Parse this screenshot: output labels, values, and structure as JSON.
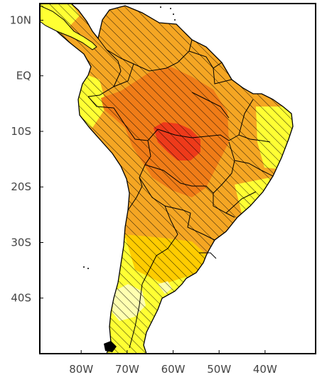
{
  "map": {
    "lat_labels": [
      "10N",
      "EQ",
      "10S",
      "20S",
      "30S",
      "40S"
    ],
    "lon_labels": [
      "80W",
      "70W",
      "60W",
      "50W",
      "40W"
    ],
    "lat_values": [
      10,
      0,
      -10,
      -20,
      -30,
      -40
    ],
    "lon_values": [
      -80,
      -70,
      -60,
      -50,
      -40
    ],
    "extent": {
      "lon_min": -89,
      "lon_max": -29,
      "lat_min": -50,
      "lat_max": 13
    },
    "colors": {
      "outline": "#000000",
      "background": "#ffffff",
      "level_1": "#ffffb0",
      "level_2": "#ffff33",
      "level_3": "#ffcc00",
      "level_4": "#f5a623",
      "level_5": "#f07c17",
      "level_6": "#ee3a1a",
      "hatch": "#000000"
    },
    "hatched": true
  }
}
